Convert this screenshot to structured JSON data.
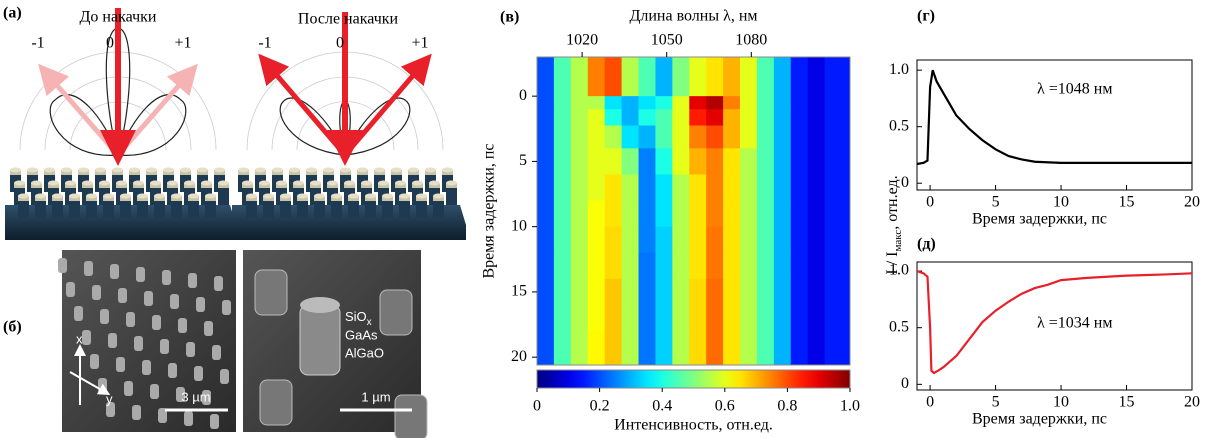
{
  "panel_a": {
    "label": "(а)",
    "left": {
      "title": "До накачки",
      "orders": [
        "-1",
        "0",
        "+1"
      ]
    },
    "right": {
      "title": "После накачки",
      "orders": [
        "-1",
        "0",
        "+1"
      ]
    }
  },
  "panel_b": {
    "label": "(б)",
    "left": {
      "axes": [
        "x",
        "y"
      ],
      "scale": "3 µm"
    },
    "right": {
      "layers": [
        {
          "base": "SiO",
          "sub": "x"
        },
        {
          "base": "GaAs"
        },
        {
          "base": "AlGaO"
        }
      ],
      "scale": "1 µm"
    }
  },
  "shared_y_label": {
    "base": "I / I",
    "sub": "макс",
    "rest": ",  отн.ед."
  },
  "chart_data": [
    {
      "type": "heatmap",
      "label": "(в)",
      "x_label": "Длина волны λ, нм",
      "y_label": "Время задержки, пс",
      "colorbar_label": "Интенсивность, отн.ед.",
      "colormap": "jet",
      "x": [
        1007,
        1013,
        1019,
        1025,
        1031,
        1037,
        1043,
        1049,
        1055,
        1061,
        1067,
        1073,
        1079,
        1085,
        1091,
        1097,
        1103,
        1109
      ],
      "y": [
        -2,
        -0.5,
        0.5,
        1.5,
        3,
        5,
        7,
        9,
        11,
        13,
        15,
        17,
        19,
        20.3
      ],
      "z": [
        [
          0.2,
          0.45,
          0.55,
          0.75,
          0.8,
          0.55,
          0.45,
          0.3,
          0.5,
          0.6,
          0.65,
          0.7,
          0.6,
          0.45,
          0.3,
          0.15,
          0.1,
          0.15
        ],
        [
          0.2,
          0.45,
          0.55,
          0.75,
          0.8,
          0.55,
          0.45,
          0.3,
          0.5,
          0.6,
          0.65,
          0.7,
          0.6,
          0.45,
          0.3,
          0.15,
          0.1,
          0.15
        ],
        [
          0.2,
          0.45,
          0.55,
          0.55,
          0.35,
          0.3,
          0.35,
          0.4,
          0.6,
          0.9,
          0.95,
          0.75,
          0.6,
          0.45,
          0.3,
          0.15,
          0.1,
          0.15
        ],
        [
          0.2,
          0.45,
          0.55,
          0.6,
          0.4,
          0.3,
          0.4,
          0.45,
          0.6,
          0.85,
          0.9,
          0.7,
          0.6,
          0.45,
          0.3,
          0.15,
          0.1,
          0.15
        ],
        [
          0.2,
          0.45,
          0.55,
          0.6,
          0.55,
          0.35,
          0.3,
          0.45,
          0.6,
          0.75,
          0.8,
          0.7,
          0.6,
          0.45,
          0.3,
          0.15,
          0.1,
          0.15
        ],
        [
          0.2,
          0.45,
          0.55,
          0.6,
          0.6,
          0.5,
          0.25,
          0.4,
          0.6,
          0.7,
          0.75,
          0.65,
          0.55,
          0.45,
          0.3,
          0.15,
          0.1,
          0.15
        ],
        [
          0.2,
          0.45,
          0.55,
          0.6,
          0.65,
          0.55,
          0.25,
          0.35,
          0.55,
          0.65,
          0.75,
          0.65,
          0.55,
          0.45,
          0.3,
          0.15,
          0.1,
          0.15
        ],
        [
          0.2,
          0.45,
          0.55,
          0.62,
          0.65,
          0.55,
          0.25,
          0.35,
          0.55,
          0.65,
          0.75,
          0.65,
          0.55,
          0.45,
          0.3,
          0.15,
          0.1,
          0.15
        ],
        [
          0.2,
          0.45,
          0.55,
          0.62,
          0.66,
          0.55,
          0.25,
          0.33,
          0.55,
          0.65,
          0.76,
          0.65,
          0.55,
          0.45,
          0.3,
          0.15,
          0.1,
          0.15
        ],
        [
          0.2,
          0.45,
          0.55,
          0.62,
          0.66,
          0.55,
          0.24,
          0.33,
          0.55,
          0.65,
          0.76,
          0.65,
          0.55,
          0.45,
          0.3,
          0.15,
          0.1,
          0.15
        ],
        [
          0.2,
          0.45,
          0.55,
          0.62,
          0.68,
          0.55,
          0.24,
          0.33,
          0.55,
          0.66,
          0.77,
          0.65,
          0.55,
          0.45,
          0.3,
          0.15,
          0.1,
          0.15
        ],
        [
          0.2,
          0.45,
          0.55,
          0.62,
          0.68,
          0.55,
          0.24,
          0.33,
          0.55,
          0.66,
          0.77,
          0.65,
          0.55,
          0.45,
          0.3,
          0.15,
          0.1,
          0.15
        ],
        [
          0.2,
          0.45,
          0.55,
          0.63,
          0.68,
          0.55,
          0.24,
          0.33,
          0.55,
          0.66,
          0.77,
          0.65,
          0.55,
          0.45,
          0.3,
          0.15,
          0.1,
          0.15
        ],
        [
          0.2,
          0.45,
          0.55,
          0.63,
          0.68,
          0.55,
          0.24,
          0.33,
          0.55,
          0.66,
          0.77,
          0.65,
          0.55,
          0.45,
          0.3,
          0.15,
          0.1,
          0.15
        ]
      ],
      "xlim": [
        1004,
        1115
      ],
      "xticks": [
        1020,
        1050,
        1080
      ],
      "ylim": [
        -3,
        20.6
      ],
      "y_inverted": true,
      "yticks": [
        0,
        5,
        10,
        15,
        20
      ],
      "clim": [
        0,
        1
      ],
      "cticks": [
        0,
        0.2,
        0.4,
        0.6,
        0.8,
        {
          "value": 1,
          "label": "1.0"
        }
      ]
    },
    {
      "type": "line",
      "label": "(г)",
      "x_label": "Время задержки, пс",
      "annotation": "λ =1048 нм",
      "annotation_color": "#000000",
      "x": [
        -1,
        -0.5,
        -0.2,
        0,
        0.2,
        0.5,
        1,
        1.5,
        2,
        3,
        4,
        5,
        6,
        7,
        8,
        10,
        12,
        15,
        20
      ],
      "series": [
        {
          "color": "#000000",
          "values": [
            0.17,
            0.18,
            0.2,
            0.85,
            1.0,
            0.9,
            0.8,
            0.7,
            0.6,
            0.48,
            0.38,
            0.3,
            0.24,
            0.21,
            0.19,
            0.18,
            0.18,
            0.18,
            0.18
          ]
        }
      ],
      "xlim": [
        -1,
        20
      ],
      "xticks": [
        0,
        5,
        10,
        15,
        20
      ],
      "ylim": [
        -0.06,
        1.09
      ],
      "yticks": [
        0,
        0.5,
        {
          "value": 1,
          "label": "1.0"
        }
      ]
    },
    {
      "type": "line",
      "label": "(д)",
      "x_label": "Время задержки, пс",
      "annotation": "λ =1034 нм",
      "annotation_color": "#e8202a",
      "x": [
        -1,
        -0.5,
        -0.2,
        0,
        0.1,
        0.3,
        0.6,
        1,
        2,
        3,
        4,
        5,
        6,
        7,
        8,
        9,
        10,
        12,
        15,
        18,
        20
      ],
      "series": [
        {
          "color": "#e8202a",
          "values": [
            1.0,
            0.98,
            0.95,
            0.5,
            0.12,
            0.1,
            0.12,
            0.15,
            0.25,
            0.4,
            0.55,
            0.65,
            0.73,
            0.8,
            0.85,
            0.88,
            0.92,
            0.94,
            0.96,
            0.97,
            0.98
          ]
        }
      ],
      "xlim": [
        -1,
        20
      ],
      "xticks": [
        0,
        5,
        10,
        15,
        20
      ],
      "ylim": [
        -0.05,
        1.08
      ],
      "yticks": [
        0,
        0.5,
        {
          "value": 1,
          "label": "1.0"
        }
      ]
    }
  ]
}
